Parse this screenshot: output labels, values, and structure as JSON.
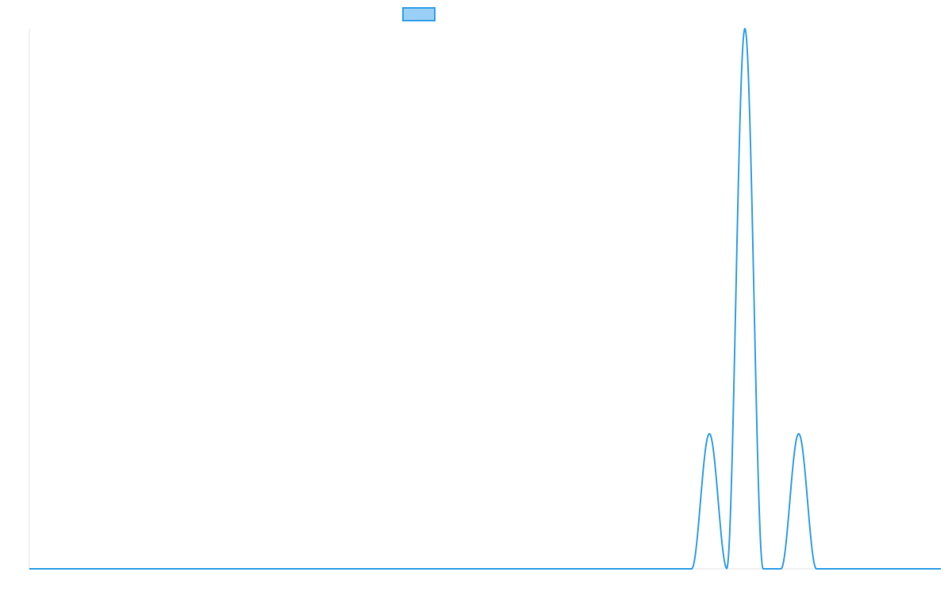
{
  "chart_data": {
    "type": "line",
    "title": "",
    "xlabel": "",
    "ylabel": "",
    "x_range": [
      0,
      100
    ],
    "ylim": [
      0,
      100
    ],
    "grid": false,
    "legend": {
      "position": "top-center",
      "entries": [
        {
          "label": "",
          "color": "#36A2EB",
          "fill": "#9AD0F5"
        }
      ]
    },
    "series": [
      {
        "color": "#36A2EB",
        "peaks": [
          {
            "center": 74.6,
            "height": 25,
            "half_width": 1.95
          },
          {
            "center": 78.5,
            "height": 100,
            "half_width": 2.0
          },
          {
            "center": 84.4,
            "height": 25,
            "half_width": 1.95
          }
        ]
      }
    ]
  }
}
